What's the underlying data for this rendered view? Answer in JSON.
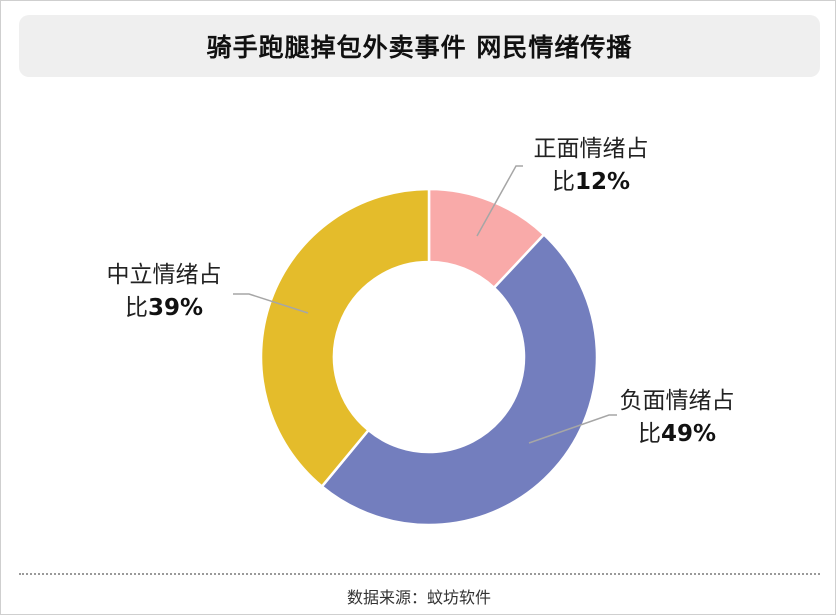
{
  "title": "骑手跑腿掉包外卖事件 网民情绪传播",
  "source_label": "数据来源：蚊坊软件",
  "chart_data": {
    "type": "pie",
    "donut": true,
    "title": "骑手跑腿掉包外卖事件 网民情绪传播",
    "slices": [
      {
        "label_line1": "正面情绪占",
        "label_prefix": "比",
        "pct_text": "12%",
        "value": 12,
        "color": "#F9AAA9"
      },
      {
        "label_line1": "负面情绪占",
        "label_prefix": "比",
        "pct_text": "49%",
        "value": 49,
        "color": "#737EBE"
      },
      {
        "label_line1": "中立情绪占",
        "label_prefix": "比",
        "pct_text": "39%",
        "value": 39,
        "color": "#E4BC2B"
      }
    ],
    "start_angle": "top",
    "direction": "clockwise"
  }
}
